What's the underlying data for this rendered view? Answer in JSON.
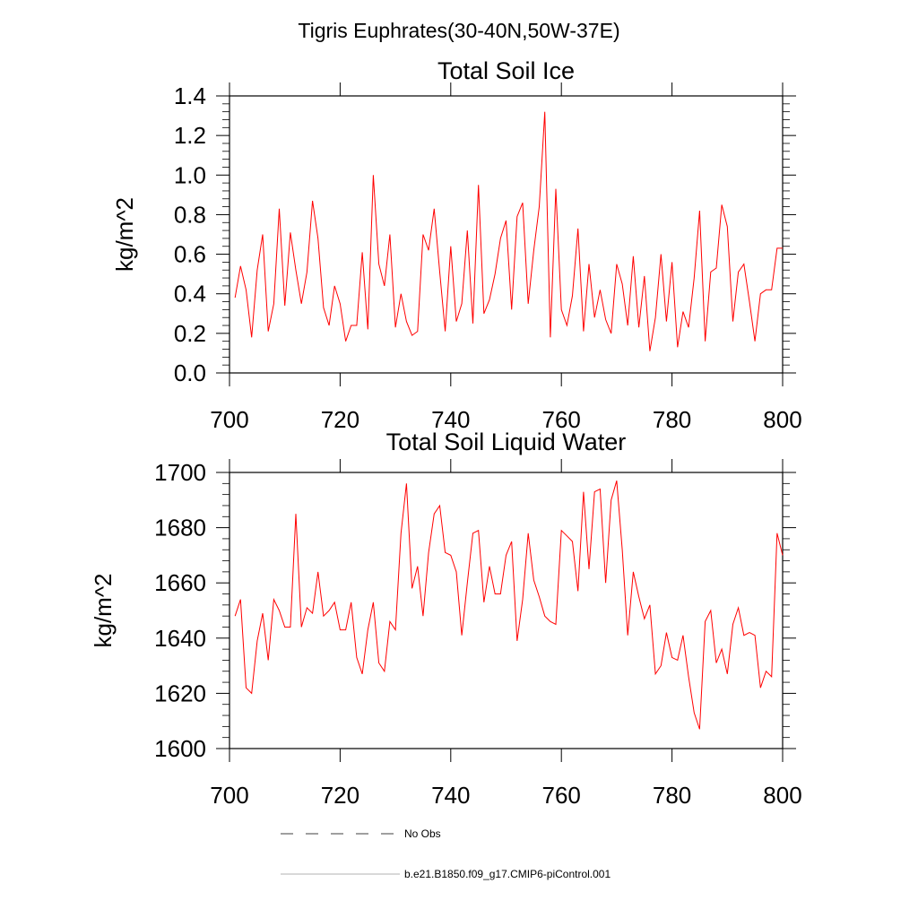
{
  "main_title": "Tigris Euphrates(30-40N,50W-37E)",
  "legend": {
    "items": [
      {
        "label": "No Obs",
        "style": "dashed",
        "color": "#000000"
      },
      {
        "label": "b.e21.B1850.f09_g17.CMIP6-piControl.001",
        "style": "solid",
        "color": "#999999"
      }
    ]
  },
  "chart_data": [
    {
      "type": "line",
      "title": "Total Soil Ice",
      "xlabel": "",
      "ylabel": "kg/m^2",
      "xlim": [
        700,
        800
      ],
      "ylim": [
        0.0,
        1.4
      ],
      "xticks": [
        700,
        720,
        740,
        760,
        780,
        800
      ],
      "xtick_labels": [
        "700",
        "720",
        "740",
        "760",
        "780",
        "800"
      ],
      "yticks": [
        0.0,
        0.2,
        0.4,
        0.6,
        0.8,
        1.0,
        1.2,
        1.4
      ],
      "ytick_labels": [
        "0.0",
        "0.2",
        "0.4",
        "0.6",
        "0.8",
        "1.0",
        "1.2",
        "1.4"
      ],
      "grid": false,
      "series": [
        {
          "name": "b.e21.B1850.f09_g17.CMIP6-piControl.001",
          "color": "#ff0000",
          "x_start": 701,
          "values": [
            0.38,
            0.54,
            0.42,
            0.18,
            0.52,
            0.7,
            0.21,
            0.35,
            0.83,
            0.34,
            0.71,
            0.52,
            0.35,
            0.51,
            0.87,
            0.68,
            0.33,
            0.24,
            0.44,
            0.35,
            0.16,
            0.24,
            0.24,
            0.61,
            0.22,
            1.0,
            0.55,
            0.44,
            0.7,
            0.23,
            0.4,
            0.26,
            0.19,
            0.21,
            0.7,
            0.62,
            0.83,
            0.51,
            0.21,
            0.64,
            0.26,
            0.35,
            0.72,
            0.25,
            0.95,
            0.3,
            0.37,
            0.5,
            0.68,
            0.77,
            0.32,
            0.79,
            0.86,
            0.35,
            0.62,
            0.84,
            1.32,
            0.18,
            0.93,
            0.32,
            0.24,
            0.39,
            0.73,
            0.21,
            0.55,
            0.28,
            0.42,
            0.27,
            0.2,
            0.55,
            0.45,
            0.24,
            0.59,
            0.23,
            0.49,
            0.11,
            0.28,
            0.6,
            0.26,
            0.56,
            0.13,
            0.31,
            0.23,
            0.48,
            0.82,
            0.16,
            0.51,
            0.53,
            0.85,
            0.74,
            0.26,
            0.51,
            0.55,
            0.36,
            0.16,
            0.4,
            0.42,
            0.42,
            0.63,
            0.63
          ]
        }
      ]
    },
    {
      "type": "line",
      "title": "Total Soil Liquid Water",
      "xlabel": "",
      "ylabel": "kg/m^2",
      "xlim": [
        700,
        800
      ],
      "ylim": [
        1600,
        1700
      ],
      "xticks": [
        700,
        720,
        740,
        760,
        780,
        800
      ],
      "xtick_labels": [
        "700",
        "720",
        "740",
        "760",
        "780",
        "800"
      ],
      "yticks": [
        1600,
        1620,
        1640,
        1660,
        1680,
        1700
      ],
      "ytick_labels": [
        "1600",
        "1620",
        "1640",
        "1660",
        "1680",
        "1700"
      ],
      "grid": false,
      "series": [
        {
          "name": "b.e21.B1850.f09_g17.CMIP6-piControl.001",
          "color": "#ff0000",
          "x_start": 701,
          "values": [
            1648,
            1654,
            1622,
            1620,
            1639,
            1649,
            1632,
            1654,
            1650,
            1644,
            1644,
            1685,
            1644,
            1651,
            1649,
            1664,
            1648,
            1650,
            1653,
            1643,
            1643,
            1653,
            1633,
            1627,
            1643,
            1653,
            1631,
            1628,
            1646,
            1643,
            1678,
            1696,
            1658,
            1666,
            1648,
            1671,
            1685,
            1688,
            1671,
            1670,
            1664,
            1641,
            1660,
            1678,
            1679,
            1653,
            1666,
            1656,
            1656,
            1670,
            1675,
            1639,
            1654,
            1678,
            1661,
            1655,
            1648,
            1646,
            1645,
            1679,
            1677,
            1675,
            1657,
            1693,
            1665,
            1693,
            1694,
            1660,
            1690,
            1697,
            1672,
            1641,
            1664,
            1655,
            1647,
            1652,
            1627,
            1630,
            1642,
            1633,
            1632,
            1641,
            1626,
            1613,
            1607,
            1646,
            1650,
            1631,
            1636,
            1627,
            1645,
            1651,
            1641,
            1642,
            1641,
            1622,
            1628,
            1626,
            1678,
            1670
          ]
        }
      ]
    }
  ]
}
